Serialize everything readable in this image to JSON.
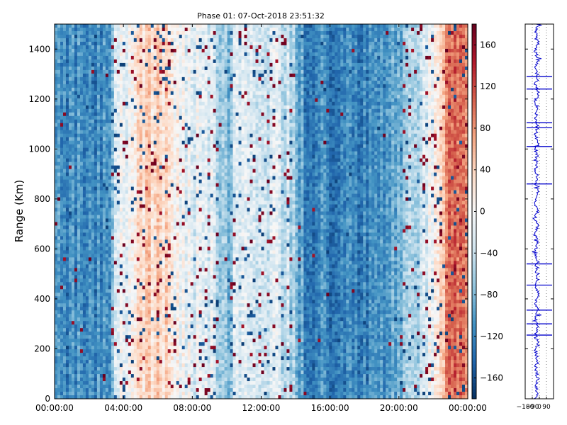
{
  "chart_data": [
    {
      "type": "heatmap",
      "title": "Phase 01: 07-Oct-2018 23:51:32",
      "xlabel": "",
      "ylabel": "Range (Km)",
      "x_ticks": [
        "00:00:00",
        "04:00:00",
        "08:00:00",
        "12:00:00",
        "16:00:00",
        "20:00:00",
        "00:00:00"
      ],
      "x_range_hours": [
        0,
        24
      ],
      "y_ticks": [
        0,
        200,
        400,
        600,
        800,
        1000,
        1200,
        1400
      ],
      "ylim": [
        0,
        1500
      ],
      "value_range": [
        -180,
        180
      ],
      "colormap": [
        "#053061",
        "#2166ac",
        "#4393c3",
        "#92c5de",
        "#d1e5f0",
        "#f7f7f7",
        "#fddbc7",
        "#f4a582",
        "#d6604d",
        "#b2182b",
        "#67001f"
      ],
      "colorbar_ticks": [
        160,
        120,
        80,
        40,
        0,
        -40,
        -80,
        -120,
        -160
      ],
      "column_profile": {
        "hours": [
          0,
          3.2,
          3.5,
          4.5,
          5.5,
          6.5,
          7.2,
          8,
          9,
          10.2,
          10.6,
          12,
          13,
          13.8,
          14.5,
          16,
          18,
          20,
          20.5,
          21.5,
          22.3,
          22.7,
          23.2,
          23.6,
          24
        ],
        "mean_phase": [
          -115,
          -115,
          -40,
          15,
          40,
          30,
          0,
          -15,
          -25,
          -75,
          -10,
          -25,
          -30,
          -50,
          -115,
          -120,
          -120,
          -90,
          -60,
          -30,
          10,
          80,
          110,
          100,
          60
        ]
      },
      "grid": false
    },
    {
      "type": "line",
      "ylim": [
        0,
        1500
      ],
      "xlim": [
        -180,
        180
      ],
      "x_ticks": [
        "−180",
        "−90",
        "0",
        "90"
      ],
      "color": "#0000cc",
      "grid": "dotted",
      "spikes_km": [
        1290,
        1240,
        1105,
        1085,
        1010,
        860,
        540,
        455,
        355,
        300,
        255
      ]
    }
  ]
}
